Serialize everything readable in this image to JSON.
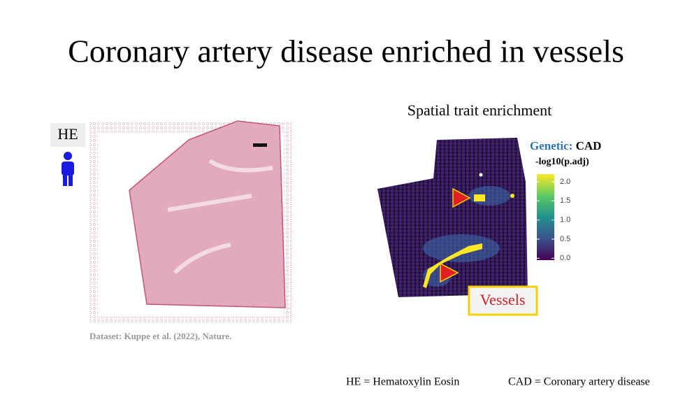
{
  "title": "Coronary artery disease enriched in vessels",
  "he_panel": {
    "label": "HE",
    "caption": "Dataset: Kuppe et al. (2022), Nature."
  },
  "enrichment_panel": {
    "title": "Spatial trait enrichment",
    "legend": {
      "prefix": "Genetic:",
      "trait": "CAD",
      "metric": "-log10(p.adj)",
      "colorbar": {
        "lim": [
          -0.05,
          2.2
        ],
        "ticks": [
          {
            "value": 0,
            "label": "0.0"
          },
          {
            "value": 0.5,
            "label": "0.5"
          },
          {
            "value": 1,
            "label": "1.0"
          },
          {
            "value": 1.5,
            "label": "1.5"
          },
          {
            "value": 2,
            "label": "2.0"
          }
        ]
      }
    },
    "annotation": "Vessels"
  },
  "footnotes": [
    "HE = Hematoxylin Eosin",
    "CAD = Coronary artery disease"
  ]
}
